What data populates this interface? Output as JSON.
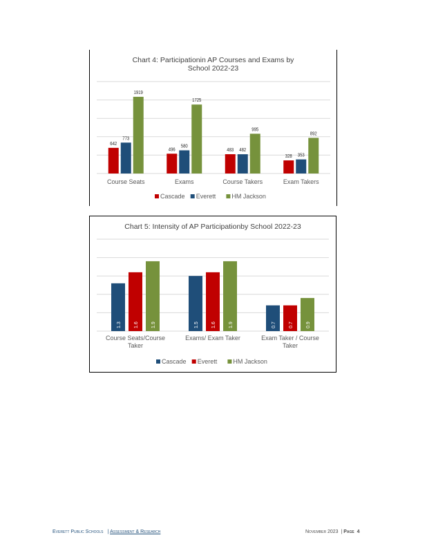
{
  "chart_data": [
    {
      "type": "bar",
      "title_lines": [
        "Chart 4: Participationin  AP Courses and Exams  by",
        "School 2022-23"
      ],
      "categories": [
        "Course Seats",
        "Exams",
        "Course Takers",
        "Exam Takers"
      ],
      "series": [
        {
          "name": "Cascade",
          "color": "#c00000",
          "values": [
            642,
            496,
            483,
            328
          ]
        },
        {
          "name": "Everett",
          "color": "#1f4e79",
          "values": [
            773,
            580,
            482,
            353
          ]
        },
        {
          "name": "HM Jackson",
          "color": "#76923c",
          "values": [
            1919,
            1725,
            995,
            892
          ]
        }
      ],
      "ylim": [
        0,
        2300
      ],
      "gridlines": [
        0,
        460,
        920,
        1380,
        1840,
        2300
      ],
      "grid": true,
      "legend_position": "bottom",
      "data_labels": "outside-end"
    },
    {
      "type": "bar",
      "title_lines": [
        "Chart 5: Intensity of AP Participationby  School 2022-23"
      ],
      "categories_lines": [
        [
          "Course Seats/Course",
          "Taker"
        ],
        [
          "Exams/ Exam Taker"
        ],
        [
          "Exam Taker / Course",
          "Taker"
        ]
      ],
      "series": [
        {
          "name": "Cascade",
          "color": "#1f4e79",
          "values": [
            1.3,
            1.5,
            0.7
          ],
          "labels": [
            "1.3",
            "1.5",
            "0.7"
          ]
        },
        {
          "name": "Everett",
          "color": "#c00000",
          "values": [
            1.6,
            1.6,
            0.7
          ],
          "labels": [
            "1.6",
            "1.6",
            "0.7"
          ]
        },
        {
          "name": "HM Jackson",
          "color": "#76923c",
          "values": [
            1.9,
            1.9,
            0.9
          ],
          "labels": [
            "1.9",
            "1.9",
            "0.9"
          ]
        }
      ],
      "ylim": [
        0,
        2.5
      ],
      "gridlines": [
        0,
        0.5,
        1.0,
        1.5,
        2.0,
        2.5
      ],
      "grid": true,
      "legend_position": "bottom",
      "data_labels": "inside-base-rotated"
    }
  ],
  "footer": {
    "org": "Everett Public Schools",
    "separator": "|",
    "dept": "Assessment & Research",
    "date": "November 2023",
    "page_label": "Page",
    "page_number": "4"
  }
}
